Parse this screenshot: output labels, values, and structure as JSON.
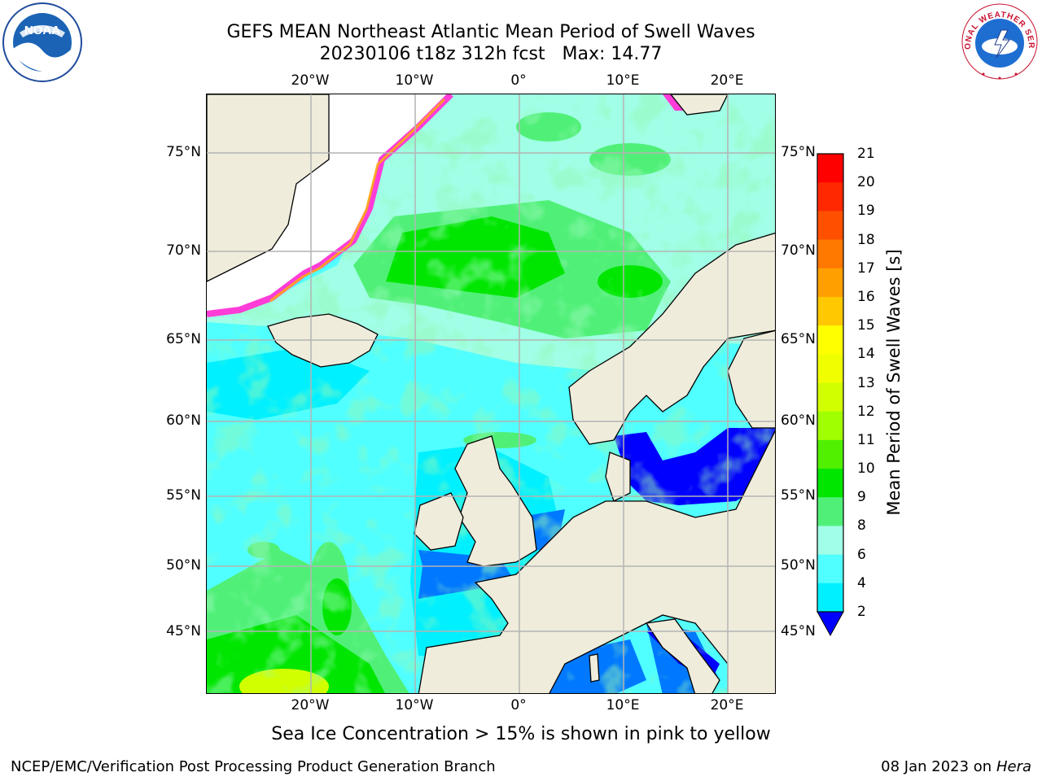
{
  "title": {
    "line1": "GEFS MEAN Northeast Atlantic Mean Period of Swell Waves",
    "line2": "20230106 t18z 312h fcst   Max: 14.77"
  },
  "map": {
    "lon_ticks": [
      "20°W",
      "10°W",
      "0°",
      "10°E",
      "20°E"
    ],
    "lat_ticks": [
      "75°N",
      "70°N",
      "65°N",
      "60°N",
      "55°N",
      "50°N",
      "45°N"
    ],
    "land_color": "#efecdc",
    "grid_color": "#b4b4b4"
  },
  "colorbar": {
    "label": "Mean Period of Swell Waves [s]",
    "ticks": [
      "21",
      "20",
      "19",
      "18",
      "17",
      "16",
      "15",
      "14",
      "13",
      "12",
      "11",
      "10",
      "9",
      "8",
      "6",
      "4",
      "2"
    ],
    "colors_top_to_bottom": [
      "#ff0000",
      "#ff2800",
      "#ff5000",
      "#ff7800",
      "#ffa000",
      "#ffc800",
      "#ffff00",
      "#f0ff00",
      "#d2ff00",
      "#a0ff00",
      "#50f000",
      "#00e600",
      "#50f078",
      "#a0ffe6",
      "#50ffff",
      "#00f0ff",
      "#0078ff"
    ],
    "extend_color": "#0000ff"
  },
  "ice_note": "Sea Ice Concentration > 15% is shown in pink to yellow",
  "footer": {
    "left": "NCEP/EMC/Verification Post Processing Product Generation Branch",
    "right_date": "08 Jan 2023 on",
    "right_host": "Hera"
  },
  "logos": {
    "noaa": "NOAA",
    "nws": "NATIONAL WEATHER SERVICE"
  }
}
